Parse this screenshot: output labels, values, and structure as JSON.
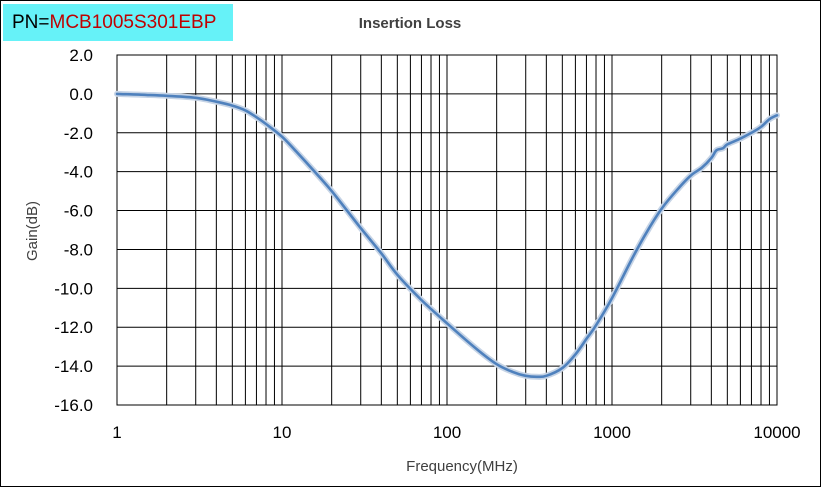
{
  "part_number": {
    "prefix": "PN=",
    "value": "MCB1005S301EBP"
  },
  "chart_data": {
    "type": "line",
    "title": "Insertion Loss",
    "xlabel": "Frequency(MHz)",
    "ylabel": "Gain(dB)",
    "xscale": "log",
    "xlim": [
      1,
      10000
    ],
    "ylim": [
      -16,
      2
    ],
    "x_ticks": [
      1,
      10,
      100,
      1000,
      10000
    ],
    "x_tick_labels": [
      "1",
      "10",
      "100",
      "1000",
      "10000"
    ],
    "y_ticks": [
      2,
      0,
      -2,
      -4,
      -6,
      -8,
      -10,
      -12,
      -14,
      -16
    ],
    "y_tick_labels": [
      "2.0",
      "0.0",
      "-2.0",
      "-4.0",
      "-6.0",
      "-8.0",
      "-10.0",
      "-12.0",
      "-14.0",
      "-16.0"
    ],
    "grid": true,
    "line_color": "#4f81bd",
    "series": [
      {
        "x": [
          1,
          1.5,
          2,
          3,
          4,
          5,
          6,
          7,
          8,
          10,
          12,
          15,
          20,
          30,
          40,
          50,
          70,
          100,
          150,
          200,
          250,
          300,
          350,
          400,
          500,
          600,
          700,
          800,
          1000,
          1300,
          1600,
          2000,
          2500,
          3000,
          3500,
          4000,
          4300,
          4700,
          5000,
          6000,
          7000,
          8000,
          9000,
          10000
        ],
        "y": [
          0.0,
          -0.05,
          -0.1,
          -0.2,
          -0.4,
          -0.6,
          -0.85,
          -1.2,
          -1.55,
          -2.2,
          -2.9,
          -3.8,
          -5.0,
          -6.9,
          -8.2,
          -9.3,
          -10.6,
          -11.8,
          -13.1,
          -13.9,
          -14.3,
          -14.5,
          -14.55,
          -14.5,
          -14.1,
          -13.4,
          -12.6,
          -11.9,
          -10.5,
          -8.6,
          -7.2,
          -5.9,
          -4.9,
          -4.2,
          -3.8,
          -3.3,
          -2.9,
          -2.8,
          -2.6,
          -2.3,
          -2.0,
          -1.7,
          -1.3,
          -1.1
        ]
      }
    ]
  }
}
